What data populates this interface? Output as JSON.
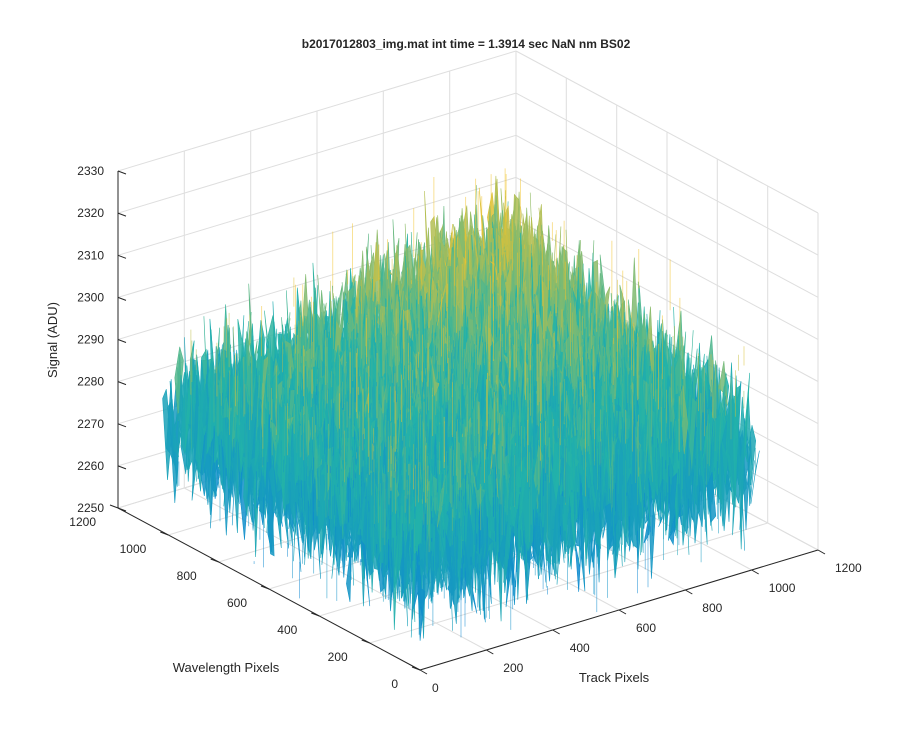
{
  "chart_data": {
    "type": "surface",
    "title": "b2017012803_img.mat int time = 1.3914 sec  NaN nm BS02",
    "xlabel": "Track Pixels",
    "ylabel": "Wavelength Pixels",
    "zlabel": "Signal (ADU)",
    "xlim": [
      0,
      1200
    ],
    "ylim": [
      0,
      1200
    ],
    "zlim": [
      2250,
      2330
    ],
    "x_ticks": [
      "0",
      "200",
      "400",
      "600",
      "800",
      "1000",
      "1200"
    ],
    "y_ticks": [
      "0",
      "200",
      "400",
      "600",
      "800",
      "1000",
      "1200"
    ],
    "z_ticks": [
      "2250",
      "2260",
      "2270",
      "2280",
      "2290",
      "2300",
      "2310",
      "2320",
      "2330"
    ],
    "grid": true,
    "colormap": "parula",
    "surface": {
      "x_range": [
        1,
        1024
      ],
      "y_range": [
        1,
        1024
      ],
      "z_center": 2281,
      "z_noise": 9,
      "z_hump": 14,
      "hump_center": [
        950,
        950
      ],
      "color_low": "#0d88d2",
      "color_mid": "#23b3a8",
      "color_high": "#f2c32c"
    }
  }
}
